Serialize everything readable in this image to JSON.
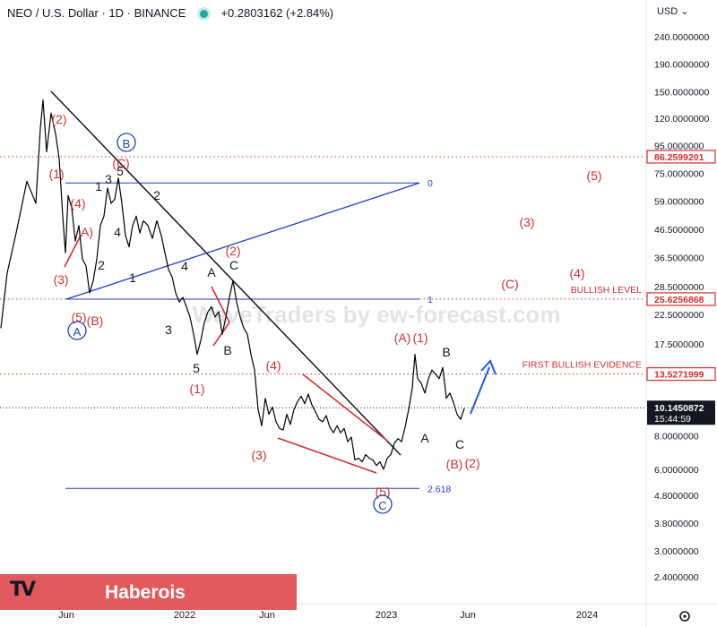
{
  "header": {
    "symbol": "NEO / U.S. Dollar · 1D · BINANCE",
    "change": "+0.2803162 (+2.84%)",
    "currency": "USD",
    "currency_chevron": "chevron-down-icon"
  },
  "watermark": "WaveTraders by ew-forecast.com",
  "branding": {
    "logo": "TV",
    "name": "Haberois",
    "banner_color": "#e05a5e"
  },
  "colors": {
    "price": "#000000",
    "wave_red": "#d32f2f",
    "wave_blue": "#1e3fbf",
    "trend": "#000000"
  },
  "chart_data": {
    "type": "line",
    "y_scale": "log",
    "ylim": [
      2.1,
      280
    ],
    "x_ticks": [
      "Jun",
      "2022",
      "Jun",
      "2023",
      "Jun",
      "2024"
    ],
    "y_ticks": [
      "240.0000000",
      "190.0000000",
      "150.0000000",
      "120.0000000",
      "95.0000000",
      "75.0000000",
      "59.0000000",
      "46.5000000",
      "36.5000000",
      "28.5000000",
      "22.5000000",
      "17.5000000",
      "8.0000000",
      "6.0000000",
      "4.8000000",
      "3.8000000",
      "3.0000000",
      "2.4000000"
    ],
    "price_labels": [
      {
        "value": "86.2599201",
        "kind": "level"
      },
      {
        "value": "25.6256868",
        "kind": "level"
      },
      {
        "value": "13.5271999",
        "kind": "level"
      },
      {
        "value": "10.1450872",
        "kind": "current",
        "time": "15:44:59"
      }
    ],
    "levels": [
      {
        "label": "BULLISH LEVEL",
        "price": 25.63
      },
      {
        "label": "FIRST BULLISH EVIDENCE",
        "price": 13.53
      },
      {
        "label": "",
        "price": 86.26
      }
    ],
    "fib": [
      {
        "label": "0",
        "price": 69
      },
      {
        "label": "1",
        "price": 25.6
      },
      {
        "label": "2.618",
        "price": 5.1
      }
    ],
    "series": [
      {
        "values": [
          [
            1,
            20
          ],
          [
            8,
            32
          ],
          [
            18,
            45
          ],
          [
            30,
            70
          ],
          [
            40,
            58
          ],
          [
            45,
            110
          ],
          [
            48,
            140
          ],
          [
            52,
            90
          ],
          [
            57,
            125
          ],
          [
            62,
            105
          ],
          [
            66,
            85
          ],
          [
            70,
            52
          ],
          [
            73,
            38
          ],
          [
            76,
            62
          ],
          [
            80,
            56
          ],
          [
            84,
            42
          ],
          [
            88,
            48
          ],
          [
            92,
            36
          ],
          [
            96,
            34
          ],
          [
            100,
            27
          ],
          [
            104,
            30
          ],
          [
            108,
            36
          ],
          [
            112,
            48
          ],
          [
            116,
            52
          ],
          [
            120,
            66
          ],
          [
            124,
            58
          ],
          [
            128,
            60
          ],
          [
            132,
            72
          ],
          [
            136,
            58
          ],
          [
            140,
            44
          ],
          [
            144,
            40
          ],
          [
            148,
            48
          ],
          [
            152,
            52
          ],
          [
            156,
            45
          ],
          [
            160,
            50
          ],
          [
            165,
            48
          ],
          [
            170,
            43
          ],
          [
            175,
            50
          ],
          [
            180,
            44
          ],
          [
            184,
            38
          ],
          [
            188,
            33
          ],
          [
            192,
            31
          ],
          [
            196,
            27
          ],
          [
            200,
            25
          ],
          [
            204,
            26
          ],
          [
            208,
            24
          ],
          [
            212,
            22
          ],
          [
            216,
            19
          ],
          [
            220,
            16
          ],
          [
            224,
            18
          ],
          [
            228,
            21
          ],
          [
            232,
            23
          ],
          [
            236,
            24
          ],
          [
            240,
            22
          ],
          [
            244,
            23
          ],
          [
            248,
            19
          ],
          [
            252,
            22
          ],
          [
            256,
            26
          ],
          [
            260,
            30
          ],
          [
            264,
            25
          ],
          [
            268,
            22
          ],
          [
            272,
            20
          ],
          [
            276,
            19
          ],
          [
            280,
            16
          ],
          [
            284,
            14
          ],
          [
            288,
            10
          ],
          [
            292,
            8.7
          ],
          [
            296,
            11
          ],
          [
            300,
            9.6
          ],
          [
            304,
            10.2
          ],
          [
            308,
            9
          ],
          [
            312,
            8.5
          ],
          [
            316,
            8.4
          ],
          [
            320,
            9.6
          ],
          [
            324,
            8.8
          ],
          [
            328,
            10
          ],
          [
            332,
            10.7
          ],
          [
            336,
            11.2
          ],
          [
            340,
            10.5
          ],
          [
            344,
            11.4
          ],
          [
            348,
            10.4
          ],
          [
            352,
            9.8
          ],
          [
            356,
            9.2
          ],
          [
            360,
            9
          ],
          [
            364,
            9.5
          ],
          [
            368,
            8.6
          ],
          [
            372,
            8.2
          ],
          [
            376,
            8.7
          ],
          [
            380,
            8.2
          ],
          [
            384,
            8.5
          ],
          [
            388,
            7.6
          ],
          [
            392,
            7.9
          ],
          [
            396,
            6.5
          ],
          [
            400,
            6.6
          ],
          [
            404,
            6.4
          ],
          [
            408,
            6.8
          ],
          [
            412,
            6.6
          ],
          [
            416,
            6.5
          ],
          [
            420,
            6.2
          ],
          [
            424,
            6.4
          ],
          [
            428,
            6
          ],
          [
            432,
            6.6
          ],
          [
            436,
            6.8
          ],
          [
            440,
            7.5
          ],
          [
            444,
            7.8
          ],
          [
            448,
            7.6
          ],
          [
            452,
            8.6
          ],
          [
            456,
            10
          ],
          [
            460,
            12
          ],
          [
            463,
            16
          ],
          [
            466,
            13
          ],
          [
            470,
            12.5
          ],
          [
            474,
            11.5
          ],
          [
            478,
            13
          ],
          [
            482,
            14
          ],
          [
            486,
            13.5
          ],
          [
            490,
            13
          ],
          [
            494,
            14.3
          ],
          [
            498,
            11
          ],
          [
            502,
            11.5
          ],
          [
            506,
            10.6
          ],
          [
            510,
            9.6
          ],
          [
            514,
            9.2
          ],
          [
            518,
            10.1
          ]
        ]
      }
    ],
    "annotations": [
      {
        "text": "(2)",
        "color": "red"
      },
      {
        "text": "(1)",
        "color": "red"
      },
      {
        "text": "(4)",
        "color": "red"
      },
      {
        "text": "A)",
        "color": "red"
      },
      {
        "text": "(3)",
        "color": "red"
      },
      {
        "text": "(5)",
        "color": "red"
      },
      {
        "text": "(B)",
        "color": "red"
      },
      {
        "text": "A",
        "color": "blue",
        "circled": true
      },
      {
        "text": "B",
        "color": "blue",
        "circled": true
      },
      {
        "text": "(C)",
        "color": "red"
      },
      {
        "text": "5",
        "color": "black"
      },
      {
        "text": "3",
        "color": "black"
      },
      {
        "text": "1",
        "color": "black"
      },
      {
        "text": "2",
        "color": "black"
      },
      {
        "text": "4",
        "color": "black"
      },
      {
        "text": "2",
        "color": "black"
      },
      {
        "text": "1",
        "color": "black"
      },
      {
        "text": "4",
        "color": "black"
      },
      {
        "text": "3",
        "color": "black"
      },
      {
        "text": "5",
        "color": "black"
      },
      {
        "text": "A",
        "color": "black"
      },
      {
        "text": "B",
        "color": "black"
      },
      {
        "text": "C",
        "color": "black"
      },
      {
        "text": "(2)",
        "color": "red"
      },
      {
        "text": "(1)",
        "color": "red"
      },
      {
        "text": "(4)",
        "color": "red"
      },
      {
        "text": "(3)",
        "color": "red"
      },
      {
        "text": "(5)",
        "color": "red"
      },
      {
        "text": "C",
        "color": "blue",
        "circled": true
      },
      {
        "text": "(A)",
        "color": "red"
      },
      {
        "text": "(1)",
        "color": "red"
      },
      {
        "text": "B",
        "color": "black"
      },
      {
        "text": "A",
        "color": "black"
      },
      {
        "text": "C",
        "color": "black"
      },
      {
        "text": "(B)",
        "color": "red"
      },
      {
        "text": "(2)",
        "color": "red"
      },
      {
        "text": "(C)",
        "color": "red"
      },
      {
        "text": "(3)",
        "color": "red"
      },
      {
        "text": "(4)",
        "color": "red"
      },
      {
        "text": "(5)",
        "color": "red"
      }
    ]
  }
}
